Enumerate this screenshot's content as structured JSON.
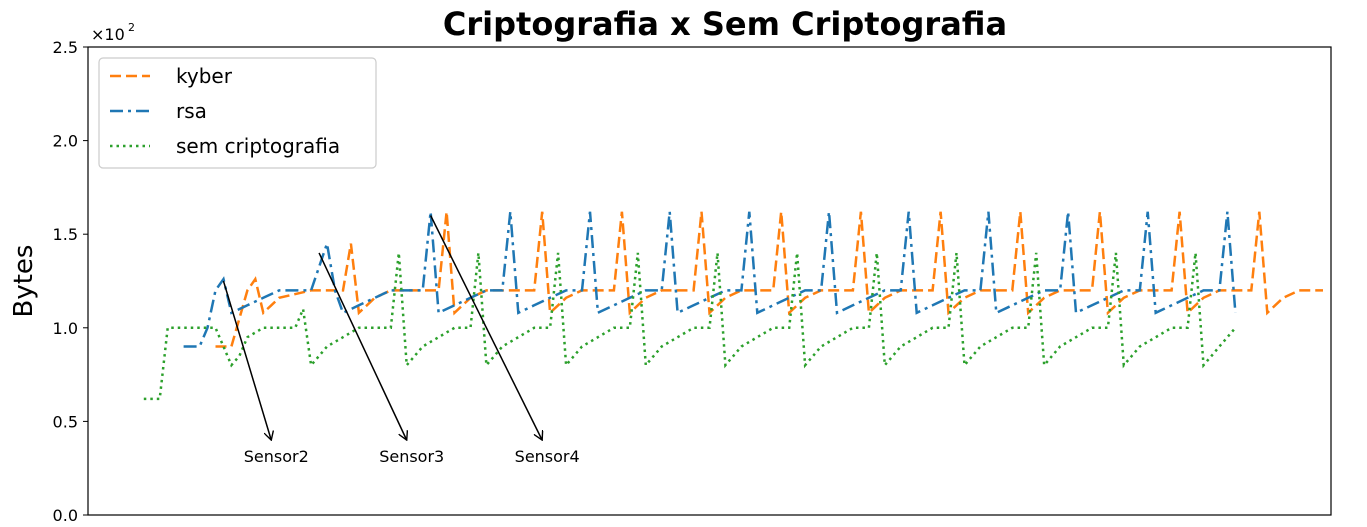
{
  "chart_data": {
    "type": "line",
    "title": "Criptografia x Sem Criptografia",
    "xlabel": "",
    "ylabel": "Bytes",
    "y_scale_label": "×10",
    "y_scale_exponent": "2",
    "ylim": [
      0,
      2.5
    ],
    "yticks": [
      0.0,
      0.5,
      1.0,
      1.5,
      2.0,
      2.5
    ],
    "ytick_labels": [
      "0.0",
      "0.5",
      "1.0",
      "1.5",
      "2.0",
      "2.5"
    ],
    "xlim": [
      0,
      156
    ],
    "grid": false,
    "legend_position": "top-left",
    "series": [
      {
        "name": "kyber",
        "color": "#ff7f0e",
        "style": "dashed",
        "x": [
          16,
          18,
          20,
          21,
          22,
          23,
          24,
          28,
          32,
          33,
          34,
          35,
          36,
          38,
          40,
          42,
          44,
          45,
          46,
          47,
          48,
          50,
          52,
          54,
          56,
          57,
          58,
          59,
          60,
          62,
          64,
          66,
          67,
          68,
          69,
          70,
          72,
          74,
          76,
          77,
          78,
          79,
          80,
          82,
          84,
          86,
          87,
          88,
          89,
          90,
          92,
          94,
          96,
          97,
          98,
          99,
          100,
          102,
          104,
          106,
          107,
          108,
          109,
          110,
          112,
          114,
          116,
          117,
          118,
          119,
          120,
          122,
          124,
          126,
          127,
          128,
          129,
          130,
          132,
          134,
          136,
          137,
          138,
          139,
          140,
          142,
          144,
          146,
          147,
          148,
          149,
          150,
          152,
          154,
          155
        ],
        "values": [
          0.9,
          0.9,
          1.2,
          1.26,
          1.08,
          1.12,
          1.16,
          1.2,
          1.2,
          1.45,
          1.08,
          1.12,
          1.16,
          1.2,
          1.2,
          1.2,
          1.2,
          1.62,
          1.08,
          1.12,
          1.16,
          1.2,
          1.2,
          1.2,
          1.2,
          1.62,
          1.08,
          1.12,
          1.16,
          1.2,
          1.2,
          1.2,
          1.62,
          1.08,
          1.12,
          1.16,
          1.2,
          1.2,
          1.2,
          1.62,
          1.08,
          1.12,
          1.16,
          1.2,
          1.2,
          1.2,
          1.62,
          1.08,
          1.12,
          1.16,
          1.2,
          1.2,
          1.2,
          1.62,
          1.08,
          1.12,
          1.16,
          1.2,
          1.2,
          1.2,
          1.62,
          1.08,
          1.12,
          1.16,
          1.2,
          1.2,
          1.2,
          1.62,
          1.08,
          1.12,
          1.16,
          1.2,
          1.2,
          1.2,
          1.62,
          1.08,
          1.12,
          1.16,
          1.2,
          1.2,
          1.2,
          1.62,
          1.08,
          1.12,
          1.16,
          1.2,
          1.2,
          1.2,
          1.62,
          1.08,
          1.12,
          1.16,
          1.2,
          1.2,
          1.2
        ]
      },
      {
        "name": "rsa",
        "color": "#1f77b4",
        "style": "dashdot",
        "x": [
          12,
          14,
          15,
          16,
          17,
          18,
          20,
          22,
          24,
          26,
          28,
          30,
          31,
          32,
          34,
          36,
          38,
          40,
          42,
          43,
          44,
          46,
          48,
          50,
          52,
          53,
          54,
          56,
          58,
          60,
          62,
          63,
          64,
          66,
          68,
          70,
          72,
          73,
          74,
          76,
          78,
          80,
          82,
          83,
          84,
          86,
          88,
          90,
          92,
          93,
          94,
          96,
          98,
          100,
          102,
          103,
          104,
          106,
          108,
          110,
          112,
          113,
          114,
          116,
          118,
          120,
          122,
          123,
          124,
          126,
          128,
          130,
          132,
          133,
          134,
          136,
          138,
          140,
          142,
          143,
          144
        ],
        "values": [
          0.9,
          0.9,
          1.0,
          1.2,
          1.26,
          1.08,
          1.12,
          1.16,
          1.2,
          1.2,
          1.2,
          1.45,
          1.2,
          1.08,
          1.12,
          1.16,
          1.2,
          1.2,
          1.2,
          1.62,
          1.08,
          1.12,
          1.16,
          1.2,
          1.2,
          1.62,
          1.08,
          1.12,
          1.16,
          1.2,
          1.2,
          1.62,
          1.08,
          1.12,
          1.16,
          1.2,
          1.2,
          1.62,
          1.08,
          1.12,
          1.16,
          1.2,
          1.2,
          1.62,
          1.08,
          1.12,
          1.16,
          1.2,
          1.2,
          1.62,
          1.08,
          1.12,
          1.16,
          1.2,
          1.2,
          1.62,
          1.08,
          1.12,
          1.16,
          1.2,
          1.2,
          1.62,
          1.08,
          1.12,
          1.16,
          1.2,
          1.2,
          1.62,
          1.08,
          1.12,
          1.16,
          1.2,
          1.2,
          1.62,
          1.08,
          1.12,
          1.16,
          1.2,
          1.2,
          1.62,
          1.08
        ]
      },
      {
        "name": "sem criptografia",
        "color": "#2ca02c",
        "style": "dotted",
        "x": [
          7,
          8,
          9,
          10,
          12,
          14,
          16,
          18,
          19,
          20,
          22,
          24,
          26,
          27,
          28,
          29,
          30,
          32,
          34,
          36,
          38,
          39,
          40,
          41,
          42,
          44,
          46,
          48,
          49,
          50,
          51,
          52,
          54,
          56,
          58,
          59,
          60,
          61,
          62,
          64,
          66,
          68,
          69,
          70,
          71,
          72,
          74,
          76,
          78,
          79,
          80,
          81,
          82,
          84,
          86,
          88,
          89,
          90,
          91,
          92,
          94,
          96,
          98,
          99,
          100,
          101,
          102,
          104,
          106,
          108,
          109,
          110,
          111,
          112,
          114,
          116,
          118,
          119,
          120,
          121,
          122,
          124,
          126,
          128,
          129,
          130,
          131,
          132,
          134,
          136,
          138,
          139,
          140,
          141,
          142,
          143,
          144
        ],
        "values": [
          0.62,
          0.62,
          0.62,
          1.0,
          1.0,
          1.0,
          1.0,
          0.8,
          0.85,
          0.95,
          1.0,
          1.0,
          1.0,
          1.1,
          0.8,
          0.85,
          0.9,
          0.95,
          1.0,
          1.0,
          1.0,
          1.4,
          0.8,
          0.85,
          0.9,
          0.95,
          1.0,
          1.0,
          1.4,
          0.8,
          0.85,
          0.9,
          0.95,
          1.0,
          1.0,
          1.4,
          0.8,
          0.85,
          0.9,
          0.95,
          1.0,
          1.0,
          1.4,
          0.8,
          0.85,
          0.9,
          0.95,
          1.0,
          1.0,
          1.4,
          0.8,
          0.85,
          0.9,
          0.95,
          1.0,
          1.0,
          1.4,
          0.8,
          0.85,
          0.9,
          0.95,
          1.0,
          1.0,
          1.4,
          0.8,
          0.85,
          0.9,
          0.95,
          1.0,
          1.0,
          1.4,
          0.8,
          0.85,
          0.9,
          0.95,
          1.0,
          1.0,
          1.4,
          0.8,
          0.85,
          0.9,
          0.95,
          1.0,
          1.0,
          1.4,
          0.8,
          0.85,
          0.9,
          0.95,
          1.0,
          1.0,
          1.4,
          0.8,
          0.85,
          0.9,
          0.95,
          1.0
        ]
      }
    ],
    "annotations": [
      {
        "text": "Sensor2",
        "from": [
          17,
          1.25
        ],
        "to": [
          23,
          0.4
        ]
      },
      {
        "text": "Sensor3",
        "from": [
          29,
          1.4
        ],
        "to": [
          40,
          0.4
        ]
      },
      {
        "text": "Sensor4",
        "from": [
          43,
          1.6
        ],
        "to": [
          57,
          0.4
        ]
      }
    ]
  }
}
